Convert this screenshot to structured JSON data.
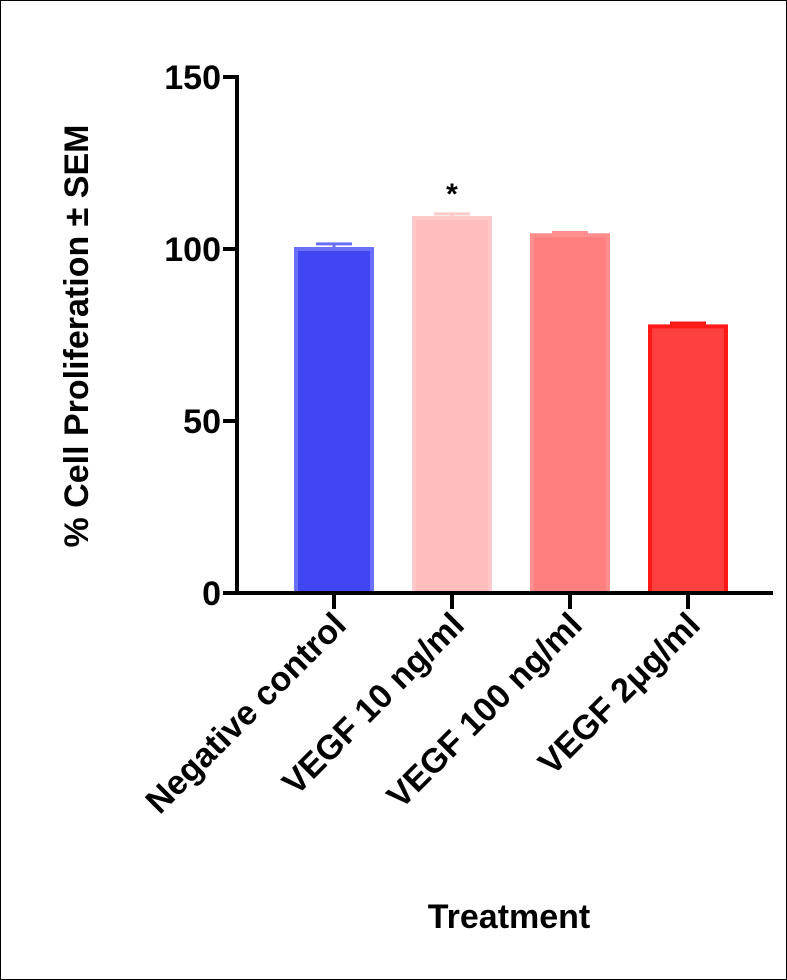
{
  "chart_data": {
    "type": "bar",
    "title": "",
    "xlabel": "Treatment",
    "ylabel": "% Cell Proliferation ± SEM",
    "ylabel_prefix": "% Cell Proliferation",
    "ylabel_suffix": "SEM",
    "categories": [
      "Negative control",
      "VEGF 10 ng/ml",
      "VEGF 100 ng/ml",
      "VEGF 2μg/ml"
    ],
    "values": [
      100,
      109,
      104,
      77.5
    ],
    "errors": [
      1.5,
      1.2,
      0.8,
      1.0
    ],
    "annotations": [
      "",
      "*",
      "",
      ""
    ],
    "fills": [
      "#4146f5",
      "#ffbdbd",
      "#ff7f7f",
      "#ff4040"
    ],
    "strokes": [
      "#6a6ff7",
      "#ffc9c9",
      "#ff8f8f",
      "#ff1a1a"
    ],
    "ylim": [
      0,
      150
    ],
    "yticks": [
      0,
      50,
      100,
      150
    ],
    "ytick_labels": [
      "0",
      "50",
      "100",
      "150"
    ],
    "grid": false,
    "legend": "none"
  }
}
